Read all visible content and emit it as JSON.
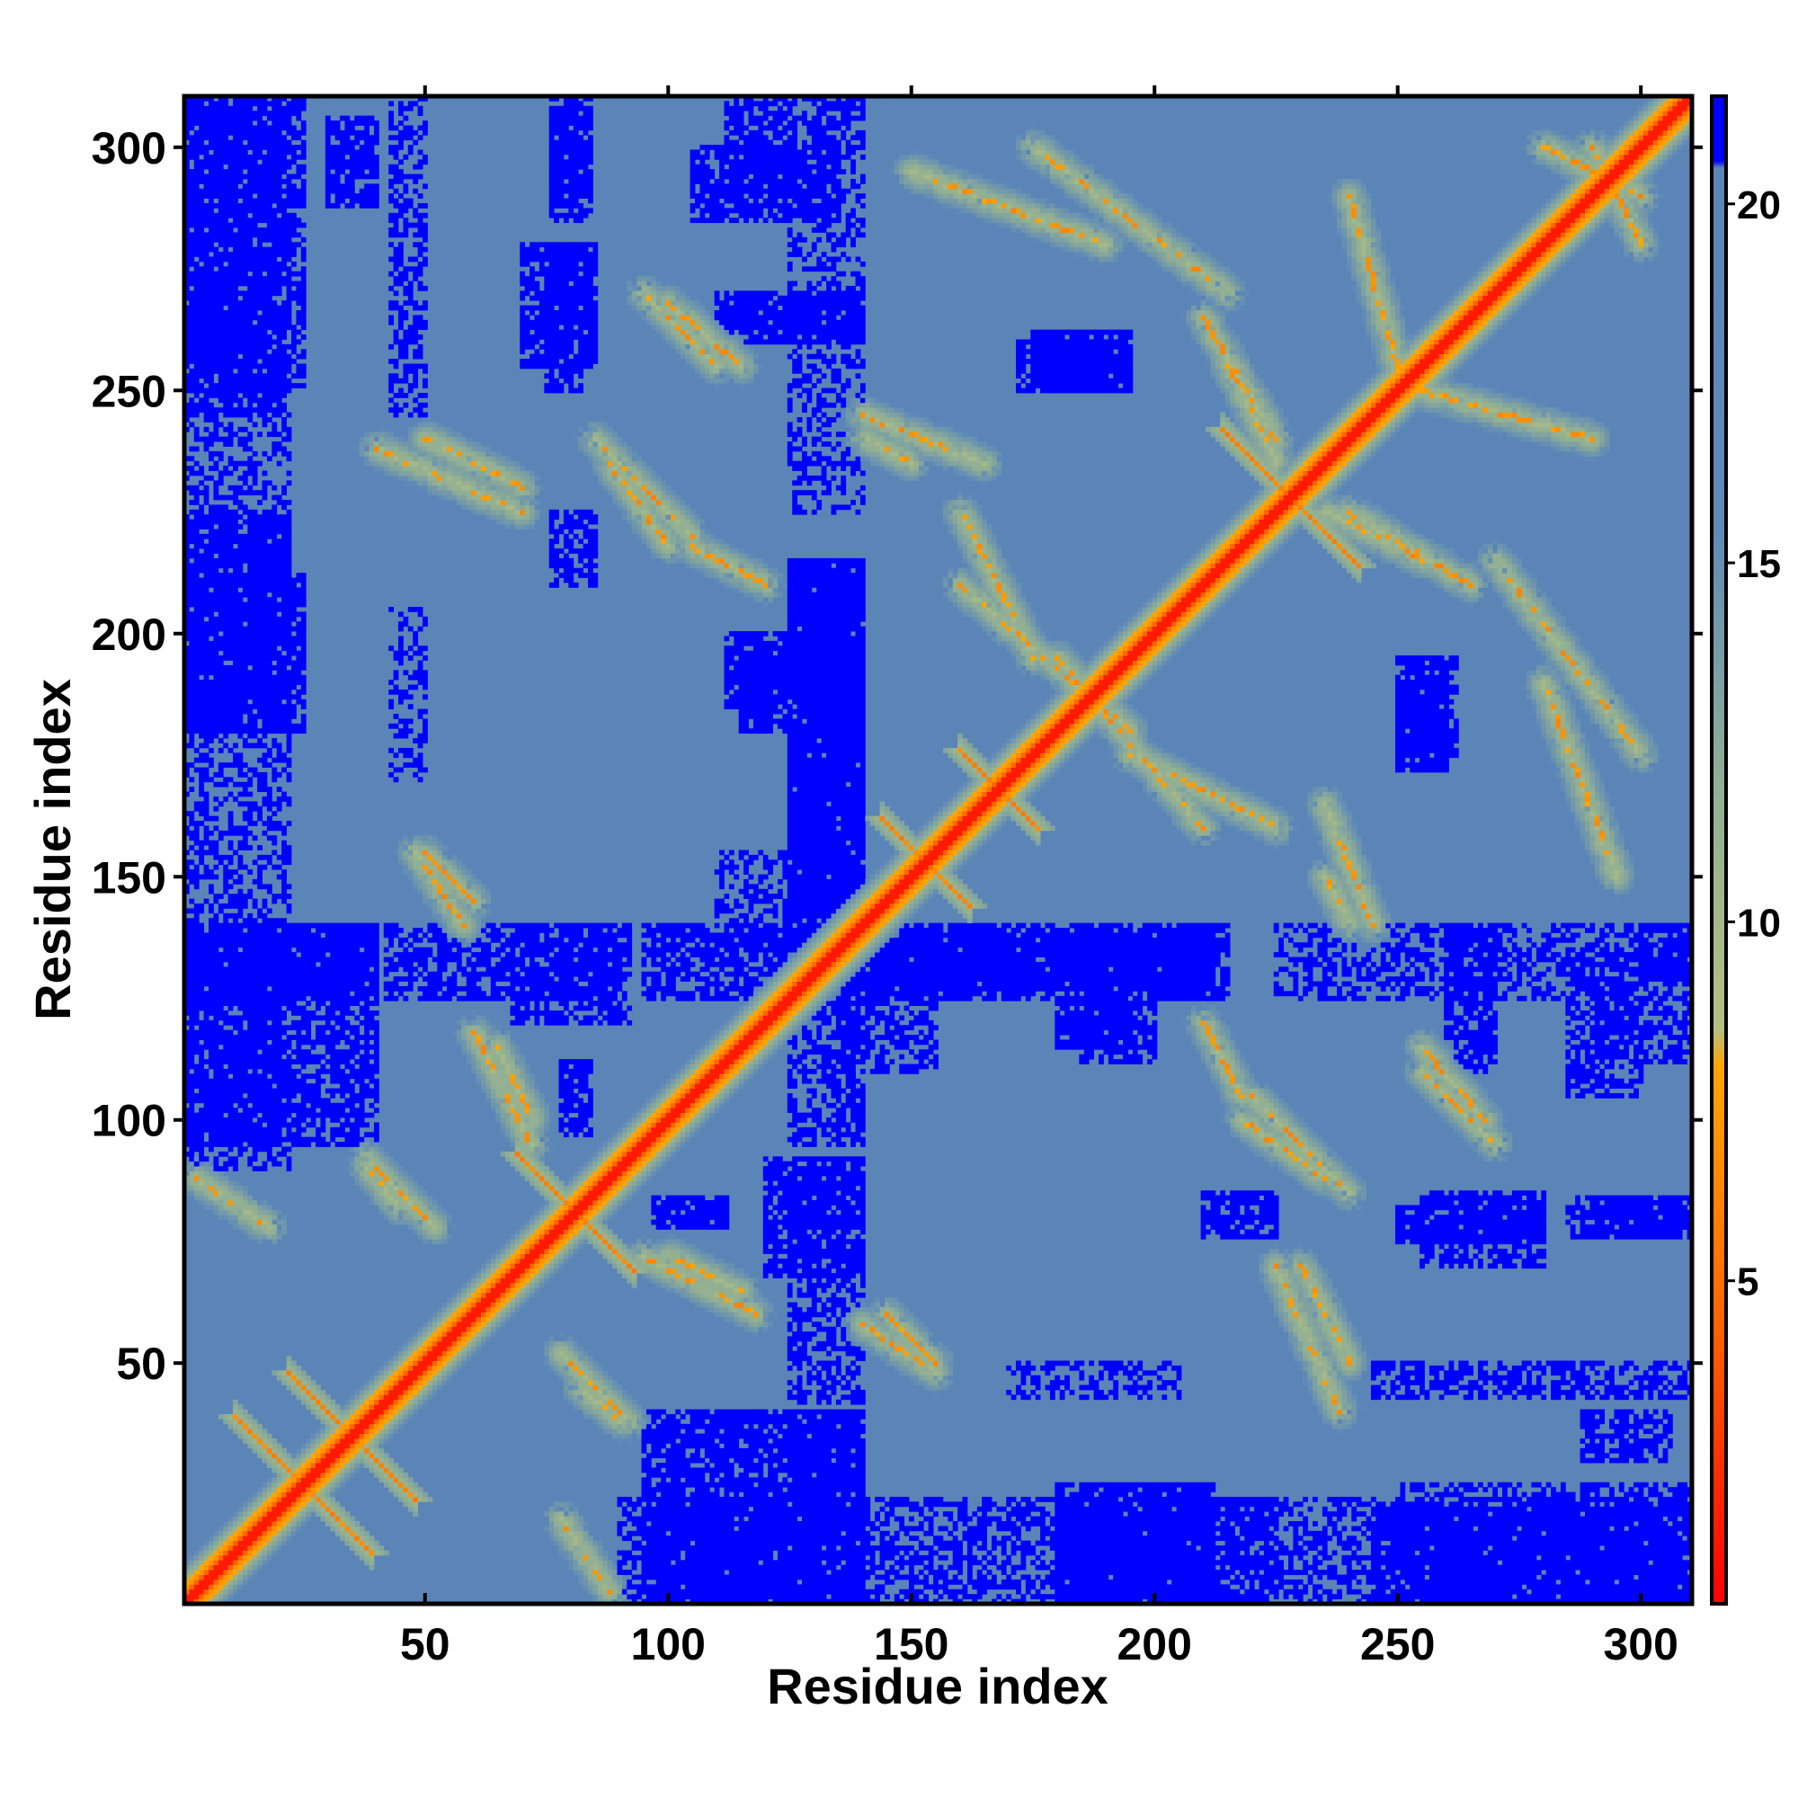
{
  "chart_data": {
    "type": "heatmap",
    "title": "",
    "xlabel": "Residue index",
    "ylabel": "Residue index",
    "n_residues": 310,
    "xlim": [
      1,
      310
    ],
    "ylim": [
      1,
      310
    ],
    "x_ticks": [
      50,
      100,
      150,
      200,
      250,
      300
    ],
    "y_ticks": [
      50,
      100,
      150,
      200,
      250,
      300
    ],
    "x_tick_labels": [
      "50",
      "100",
      "150",
      "200",
      "250",
      "300"
    ],
    "y_tick_labels": [
      "50",
      "100",
      "150",
      "200",
      "250",
      "300"
    ],
    "colorbar": {
      "range": [
        0.5,
        21.5
      ],
      "ticks": [
        5,
        10,
        15,
        20
      ],
      "tick_labels": [
        "5",
        "10",
        "15",
        "20"
      ],
      "stops": [
        {
          "v": 0.5,
          "color": "#ff0000"
        },
        {
          "v": 4.5,
          "color": "#ff6600"
        },
        {
          "v": 8.0,
          "color": "#ffa500"
        },
        {
          "v": 8.5,
          "color": "#b4c080"
        },
        {
          "v": 12.0,
          "color": "#8fae95"
        },
        {
          "v": 15.5,
          "color": "#5f8ab8"
        },
        {
          "v": 20.5,
          "color": "#5b85b6"
        },
        {
          "v": 20.6,
          "color": "#0000ff"
        },
        {
          "v": 21.5,
          "color": "#0000ff"
        }
      ]
    },
    "background_distance": 17.5,
    "far_distance": 21,
    "cross_contacts": [
      {
        "center": [
          25,
          25
        ],
        "half_length": 14
      },
      {
        "center": [
          35,
          35
        ],
        "half_length": 13
      },
      {
        "center": [
          81,
          81
        ],
        "half_length": 12
      },
      {
        "center": [
          153,
          153
        ],
        "half_length": 9
      },
      {
        "center": [
          228,
          228
        ],
        "half_length": 14
      },
      {
        "center": [
          168,
          168
        ],
        "half_length": 8
      }
    ],
    "contact_bands": [
      {
        "x": [
          78,
          92
        ],
        "y": [
          38,
          52
        ],
        "orientation": "anti"
      },
      {
        "x": [
          38,
          45
        ],
        "y": [
          82,
          90
        ],
        "orientation": "anti"
      },
      {
        "x": [
          3,
          18
        ],
        "y": [
          78,
          88
        ],
        "orientation": "anti"
      },
      {
        "x": [
          95,
          118
        ],
        "y": [
          60,
          72
        ],
        "orientation": "anti"
      },
      {
        "x": [
          140,
          155
        ],
        "y": [
          48,
          58
        ],
        "orientation": "anti"
      },
      {
        "x": [
          230,
          240
        ],
        "y": [
          50,
          70
        ],
        "orientation": "anti"
      },
      {
        "x": [
          220,
          240
        ],
        "y": [
          85,
          105
        ],
        "orientation": "anti"
      },
      {
        "x": [
          255,
          270
        ],
        "y": [
          95,
          110
        ],
        "orientation": "anti"
      },
      {
        "x": [
          195,
          225
        ],
        "y": [
          160,
          175
        ],
        "orientation": "anti"
      },
      {
        "x": [
          160,
          195
        ],
        "y": [
          180,
          210
        ],
        "orientation": "anti"
      },
      {
        "x": [
          235,
          245
        ],
        "y": [
          140,
          165
        ],
        "orientation": "anti"
      },
      {
        "x": [
          280,
          295
        ],
        "y": [
          150,
          190
        ],
        "orientation": "anti"
      },
      {
        "x": [
          240,
          265
        ],
        "y": [
          210,
          225
        ],
        "orientation": "anti"
      },
      {
        "x": [
          215,
          225
        ],
        "y": [
          235,
          255
        ],
        "orientation": "anti"
      },
      {
        "x": [
          255,
          290
        ],
        "y": [
          240,
          250
        ],
        "orientation": "anti"
      },
      {
        "x": [
          290,
          300
        ],
        "y": [
          280,
          300
        ],
        "orientation": "anti"
      },
      {
        "x": [
          175,
          215
        ],
        "y": [
          270,
          300
        ],
        "orientation": "anti"
      },
      {
        "x": [
          100,
          115
        ],
        "y": [
          255,
          268
        ],
        "orientation": "anti"
      },
      {
        "x": [
          88,
          100
        ],
        "y": [
          218,
          235
        ],
        "orientation": "anti"
      },
      {
        "x": [
          105,
          120
        ],
        "y": [
          210,
          218
        ],
        "orientation": "anti"
      },
      {
        "x": [
          40,
          70
        ],
        "y": [
          225,
          238
        ],
        "orientation": "anti"
      },
      {
        "x": [
          50,
          60
        ],
        "y": [
          145,
          155
        ],
        "orientation": "anti"
      },
      {
        "x": [
          140,
          150
        ],
        "y": [
          235,
          240
        ],
        "orientation": "anti"
      },
      {
        "x": [
          65,
          72
        ],
        "y": [
          100,
          115
        ],
        "orientation": "anti"
      }
    ],
    "far_regions": [
      {
        "x": [
          1,
          22
        ],
        "y": [
          180,
          225
        ],
        "density": 0.8
      },
      {
        "x": [
          1,
          25
        ],
        "y": [
          250,
          310
        ],
        "density": 0.7
      },
      {
        "x": [
          1,
          20
        ],
        "y": [
          95,
          140
        ],
        "density": 0.6
      },
      {
        "x": [
          1,
          40
        ],
        "y": [
          125,
          140
        ],
        "density": 0.85
      },
      {
        "x": [
          42,
          90
        ],
        "y": [
          125,
          140
        ],
        "density": 0.65
      },
      {
        "x": [
          95,
          130
        ],
        "y": [
          125,
          140
        ],
        "density": 0.7
      },
      {
        "x": [
          135,
          212
        ],
        "y": [
          127,
          138
        ],
        "density": 0.9
      },
      {
        "x": [
          225,
          310
        ],
        "y": [
          125,
          140
        ],
        "density": 0.45
      },
      {
        "x": [
          125,
          140
        ],
        "y": [
          135,
          215
        ],
        "density": 0.95
      },
      {
        "x": [
          112,
          140
        ],
        "y": [
          185,
          200
        ],
        "density": 0.85
      },
      {
        "x": [
          90,
          310
        ],
        "y": [
          1,
          22
        ],
        "density": 0.55
      },
      {
        "x": [
          95,
          140
        ],
        "y": [
          1,
          40
        ],
        "density": 0.8
      },
      {
        "x": [
          180,
          212
        ],
        "y": [
          1,
          25
        ],
        "density": 0.85
      },
      {
        "x": [
          245,
          310
        ],
        "y": [
          1,
          20
        ],
        "density": 0.75
      },
      {
        "x": [
          120,
          140
        ],
        "y": [
          68,
          92
        ],
        "density": 0.8
      },
      {
        "x": [
          97,
          112
        ],
        "y": [
          78,
          84
        ],
        "density": 0.85
      },
      {
        "x": [
          210,
          225
        ],
        "y": [
          76,
          85
        ],
        "density": 0.85
      },
      {
        "x": [
          250,
          280
        ],
        "y": [
          75,
          82
        ],
        "density": 0.85
      },
      {
        "x": [
          290,
          310
        ],
        "y": [
          76,
          84
        ],
        "density": 0.8
      },
      {
        "x": [
          180,
          195
        ],
        "y": [
          115,
          125
        ],
        "density": 0.85
      },
      {
        "x": [
          135,
          155
        ],
        "y": [
          110,
          125
        ],
        "density": 0.55
      },
      {
        "x": [
          175,
          195
        ],
        "y": [
          250,
          262
        ],
        "density": 0.9
      },
      {
        "x": [
          110,
          140
        ],
        "y": [
          260,
          270
        ],
        "density": 0.85
      },
      {
        "x": [
          70,
          85
        ],
        "y": [
          255,
          280
        ],
        "density": 0.85
      },
      {
        "x": [
          105,
          135
        ],
        "y": [
          285,
          300
        ],
        "density": 0.8
      },
      {
        "x": [
          30,
          40
        ],
        "y": [
          288,
          306
        ],
        "density": 0.8
      },
      {
        "x": [
          76,
          84
        ],
        "y": [
          285,
          308
        ],
        "density": 0.75
      },
      {
        "x": [
          112,
          126
        ],
        "y": [
          290,
          310
        ],
        "density": 0.7
      },
      {
        "x": [
          250,
          260
        ],
        "y": [
          172,
          190
        ],
        "density": 0.9
      },
      {
        "x": [
          245,
          310
        ],
        "y": [
          43,
          50
        ],
        "density": 0.6
      },
      {
        "x": [
          170,
          205
        ],
        "y": [
          43,
          50
        ],
        "density": 0.5
      },
      {
        "x": [
          300,
          310
        ],
        "y": [
          128,
          140
        ],
        "density": 0.85
      },
      {
        "x": [
          205,
          212
        ],
        "y": [
          126,
          140
        ],
        "density": 0.9
      }
    ]
  }
}
